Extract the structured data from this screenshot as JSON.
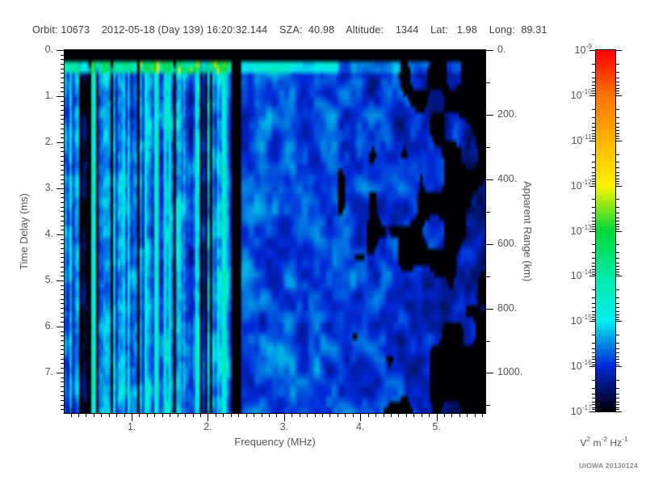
{
  "header": {
    "separator": "    ",
    "fields": [
      {
        "name": "orbit",
        "text": "Orbit: 10673"
      },
      {
        "name": "datetime",
        "text": "2012-05-18 (Day 139) 16:20:32.144"
      },
      {
        "name": "sza",
        "text": "SZA:  40.98"
      },
      {
        "name": "altitude",
        "text": "Altitude:    1344"
      },
      {
        "name": "lat",
        "text": "Lat:   1.98"
      },
      {
        "name": "long",
        "text": "Long:  89.31"
      }
    ]
  },
  "credit": "UIOWA 20130124",
  "chart_data": {
    "type": "heatmap",
    "subtype": "radar-sounder-ionogram-spectrogram",
    "title": "",
    "xlabel": "Frequency (MHz)",
    "ylabel_left": "Time Delay (ms)",
    "ylabel_right": "Apparent Range (km)",
    "x_range_mhz": [
      0.12,
      5.64
    ],
    "y_range_ms": [
      0,
      7.88
    ],
    "y_range_km": [
      0,
      1124
    ],
    "x_ticks": [
      {
        "v": 1,
        "label": "1."
      },
      {
        "v": 2,
        "label": "2."
      },
      {
        "v": 3,
        "label": "3."
      },
      {
        "v": 4,
        "label": "4."
      },
      {
        "v": 5,
        "label": "5."
      }
    ],
    "x_minor_step_mhz": 0.1,
    "y_ticks_ms": [
      {
        "v": 0,
        "label": "0."
      },
      {
        "v": 1,
        "label": "1."
      },
      {
        "v": 2,
        "label": "2."
      },
      {
        "v": 3,
        "label": "3."
      },
      {
        "v": 4,
        "label": "4."
      },
      {
        "v": 5,
        "label": "5."
      },
      {
        "v": 6,
        "label": "6."
      },
      {
        "v": 7,
        "label": "7."
      }
    ],
    "y_minor_step_ms": 0.1,
    "y_ticks_km": [
      {
        "v": 0,
        "label": "0."
      },
      {
        "v": 200,
        "label": "200."
      },
      {
        "v": 400,
        "label": "400."
      },
      {
        "v": 600,
        "label": "600."
      },
      {
        "v": 800,
        "label": "800."
      },
      {
        "v": 1000,
        "label": "1000."
      }
    ],
    "y_minor_step_km": 100,
    "grid": "off",
    "legend": "colorbar-right",
    "colorbar": {
      "scale": "log",
      "min": "1e-17",
      "max": "1e-9",
      "tick_labels": [
        {
          "base": "10",
          "exp": "-9"
        },
        {
          "base": "10",
          "exp": "-10"
        },
        {
          "base": "10",
          "exp": "-11"
        },
        {
          "base": "10",
          "exp": "-12"
        },
        {
          "base": "10",
          "exp": "-13"
        },
        {
          "base": "10",
          "exp": "-14"
        },
        {
          "base": "10",
          "exp": "-15"
        },
        {
          "base": "10",
          "exp": "-16"
        },
        {
          "base": "10",
          "exp": "-17"
        }
      ],
      "unit_parts": [
        {
          "base": "V",
          "sup": "2"
        },
        {
          "base": " m",
          "sup": "-2"
        },
        {
          "base": " Hz",
          "sup": "-1"
        }
      ],
      "colormap_stops": [
        [
          0.0,
          "#000005"
        ],
        [
          0.125,
          "#0028D8"
        ],
        [
          0.25,
          "#00EEEE"
        ],
        [
          0.375,
          "#00E8A8"
        ],
        [
          0.5,
          "#00D838"
        ],
        [
          0.625,
          "#FFF200"
        ],
        [
          0.75,
          "#FFB400"
        ],
        [
          0.875,
          "#FF7400"
        ],
        [
          1.0,
          "#FF0000"
        ]
      ]
    },
    "features": [
      "solid black band across full width for time delays below ~0.22 ms",
      "bright cyan horizontal band at ~0.25-0.5 ms, strongest below 2.4 MHz, with green patches between ~0.9 and 2.1 MHz",
      "dense vertical striping (alternating bright cyan and black columns) for frequencies below ~2.3 MHz",
      "persistent bright cyan vertical column near 1.33 MHz",
      "cluster of dark/black columns near 0.3-0.55 MHz",
      "black vertical gap (no data) at ~2.30-2.43 MHz",
      "smoother medium-blue blob noise from 2.43 to 5.6 MHz, typical level near 1e-16",
      "increasing fraction of black (below 1e-17) patches above ~3.7 MHz",
      "no coherent echo trace; display dominated by receiver noise near 1e-16 to 1e-15"
    ],
    "texture": {
      "seed": 20130124,
      "cols": 174,
      "rows": 64,
      "top_black_ms": 0.22,
      "bright_band_ms": 0.52,
      "stripe_region_max_mhz": 2.3,
      "gap_mhz": [
        2.3,
        2.43
      ],
      "bright_column_mhz": [
        1.3,
        1.37
      ],
      "dark_cluster_mhz": [
        0.27,
        0.56
      ],
      "speckle_start_mhz": 3.7,
      "black_col_prob": 0.1,
      "bright_col_prob": 0.12
    }
  }
}
